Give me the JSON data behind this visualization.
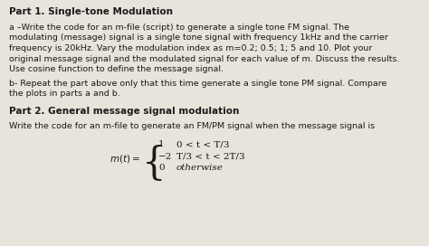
{
  "bg_color": "#e8e4dc",
  "text_color": "#1a1a1a",
  "title1": "Part 1. Single-tone Modulation",
  "para_a_line1": "a –Write the code for an m-file (script) to generate a single tone FM signal. The",
  "para_a_line2": "modulating (message) signal is a single tone signal with frequency 1kHz and the carrier",
  "para_a_line3": "frequency is 20kHz. Vary the modulation index as m=0.2; 0.5; 1; 5 and 10. Plot your",
  "para_a_line4": "original message signal and the modulated signal for each value of m. Discuss the results.",
  "para_a_line5": "Use cosine function to define the message signal.",
  "para_b_line1": "b- Repeat the part above only that this time generate a single tone PM signal. Compare",
  "para_b_line2": "the plots in parts a and b.",
  "title2": "Part 2. General message signal modulation",
  "para2": "Write the code for an m-file to generate an FM/PM signal when the message signal is",
  "brace_values": [
    "1",
    "−2",
    "0"
  ],
  "brace_conditions": [
    "0 < t < T/3",
    "T/3 < t < 2T/3",
    "otherwise"
  ],
  "font_size_title": 7.5,
  "font_size_body": 6.8,
  "font_size_math": 7.5
}
